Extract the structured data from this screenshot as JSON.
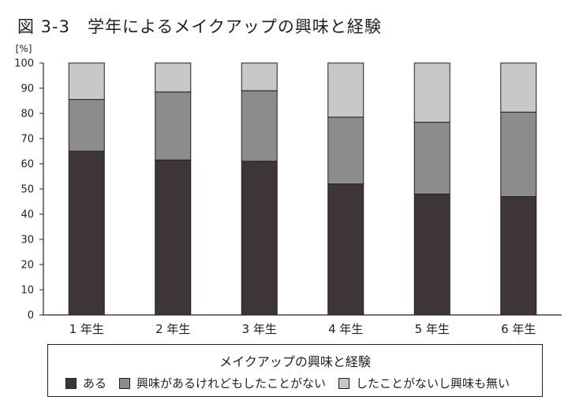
{
  "header": {
    "figure_no": "図 3-3",
    "title": "学年によるメイクアップの興味と経験"
  },
  "chart_data": {
    "type": "bar",
    "stacked": true,
    "title": "学年によるメイクアップの興味と経験",
    "ylabel": "[%]",
    "ylim": [
      0,
      100
    ],
    "yticks": [
      0,
      10,
      20,
      30,
      40,
      50,
      60,
      70,
      80,
      90,
      100
    ],
    "categories": [
      "1 年生",
      "2 年生",
      "3 年生",
      "4 年生",
      "5 年生",
      "6 年生"
    ],
    "legend_title": "メイクアップの興味と経験",
    "legend_position": "bottom",
    "grid": false,
    "series": [
      {
        "name": "ある",
        "color": "#3d3536",
        "values": [
          65,
          61.5,
          61,
          52,
          48,
          47
        ]
      },
      {
        "name": "興味があるけれどもしたことがない",
        "color": "#8c8c8c",
        "values": [
          20.5,
          27,
          28,
          26.5,
          28.5,
          33.5
        ]
      },
      {
        "name": "したことがないし興味も無い",
        "color": "#c8c8c8",
        "values": [
          14.5,
          11.5,
          11,
          21.5,
          23.5,
          19.5
        ]
      }
    ]
  }
}
